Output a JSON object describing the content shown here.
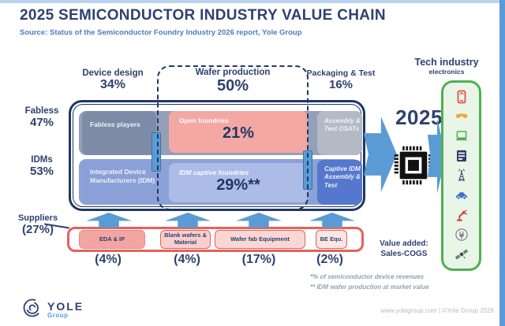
{
  "page": {
    "title": "2025 SEMICONDUCTOR INDUSTRY VALUE CHAIN",
    "subtitle": "Source: Status of the Semiconductor Foundry Industry 2026 report, Yole Group"
  },
  "columns": [
    {
      "label": "Device design",
      "value": "34%"
    },
    {
      "label": "Wafer production",
      "value": "50%"
    },
    {
      "label": "Packaging & Test",
      "value": "16%"
    }
  ],
  "rows": [
    {
      "label": "Fabless",
      "value": "47%"
    },
    {
      "label": "IDMs",
      "value": "53%"
    }
  ],
  "chain": {
    "fabless_players": "Fabless players",
    "open_foundries": {
      "label": "Open foundries",
      "value": "21%"
    },
    "osats": "Assembly & Test OSATs",
    "idm": "Integrated Device Manufacturers (IDM)",
    "idm_captive": {
      "label": "IDM captive foundries",
      "value": "29%**"
    },
    "captive_idm": "Captive IDM Assembly & Test"
  },
  "suppliers": {
    "label": "Suppliers",
    "value": "(27%)",
    "items": [
      {
        "label": "EDA & IP",
        "value": "(4%)"
      },
      {
        "label": "Blank wafers & Material",
        "value": "(4%)"
      },
      {
        "label": "Wafer fab Equipment",
        "value": "(17%)"
      },
      {
        "label": "BE Equ.",
        "value": "(2%)"
      }
    ]
  },
  "output": {
    "year": "2025",
    "chip_icon": "microchip-icon"
  },
  "tech": {
    "title": "Tech industry",
    "subtitle": "electronics",
    "icons": [
      "smartphone",
      "smart-glasses",
      "laptop",
      "server",
      "telecom-antenna",
      "car",
      "robot-arm",
      "power-plug",
      "satellite"
    ]
  },
  "value_added": {
    "line1": "Value added:",
    "line2": "Sales-COGS"
  },
  "footnotes": [
    "*% of semiconductor device revenues",
    "** IDM wafer production at market value"
  ],
  "footer": {
    "brand": "YOLE",
    "brand_sub": "Group",
    "credit": "www.yolegroup.com | ©Yole Group 2026"
  },
  "colors": {
    "navy": "#2e4170",
    "border_navy": "#1f3864",
    "accent_blue": "#5b9bd5",
    "salmon": "#f3a8a4",
    "periwinkle": "#8ca1d8",
    "slate": "#93a0b8",
    "red": "#e8605a",
    "green": "#4db153",
    "light_green": "#e9f5e7"
  }
}
